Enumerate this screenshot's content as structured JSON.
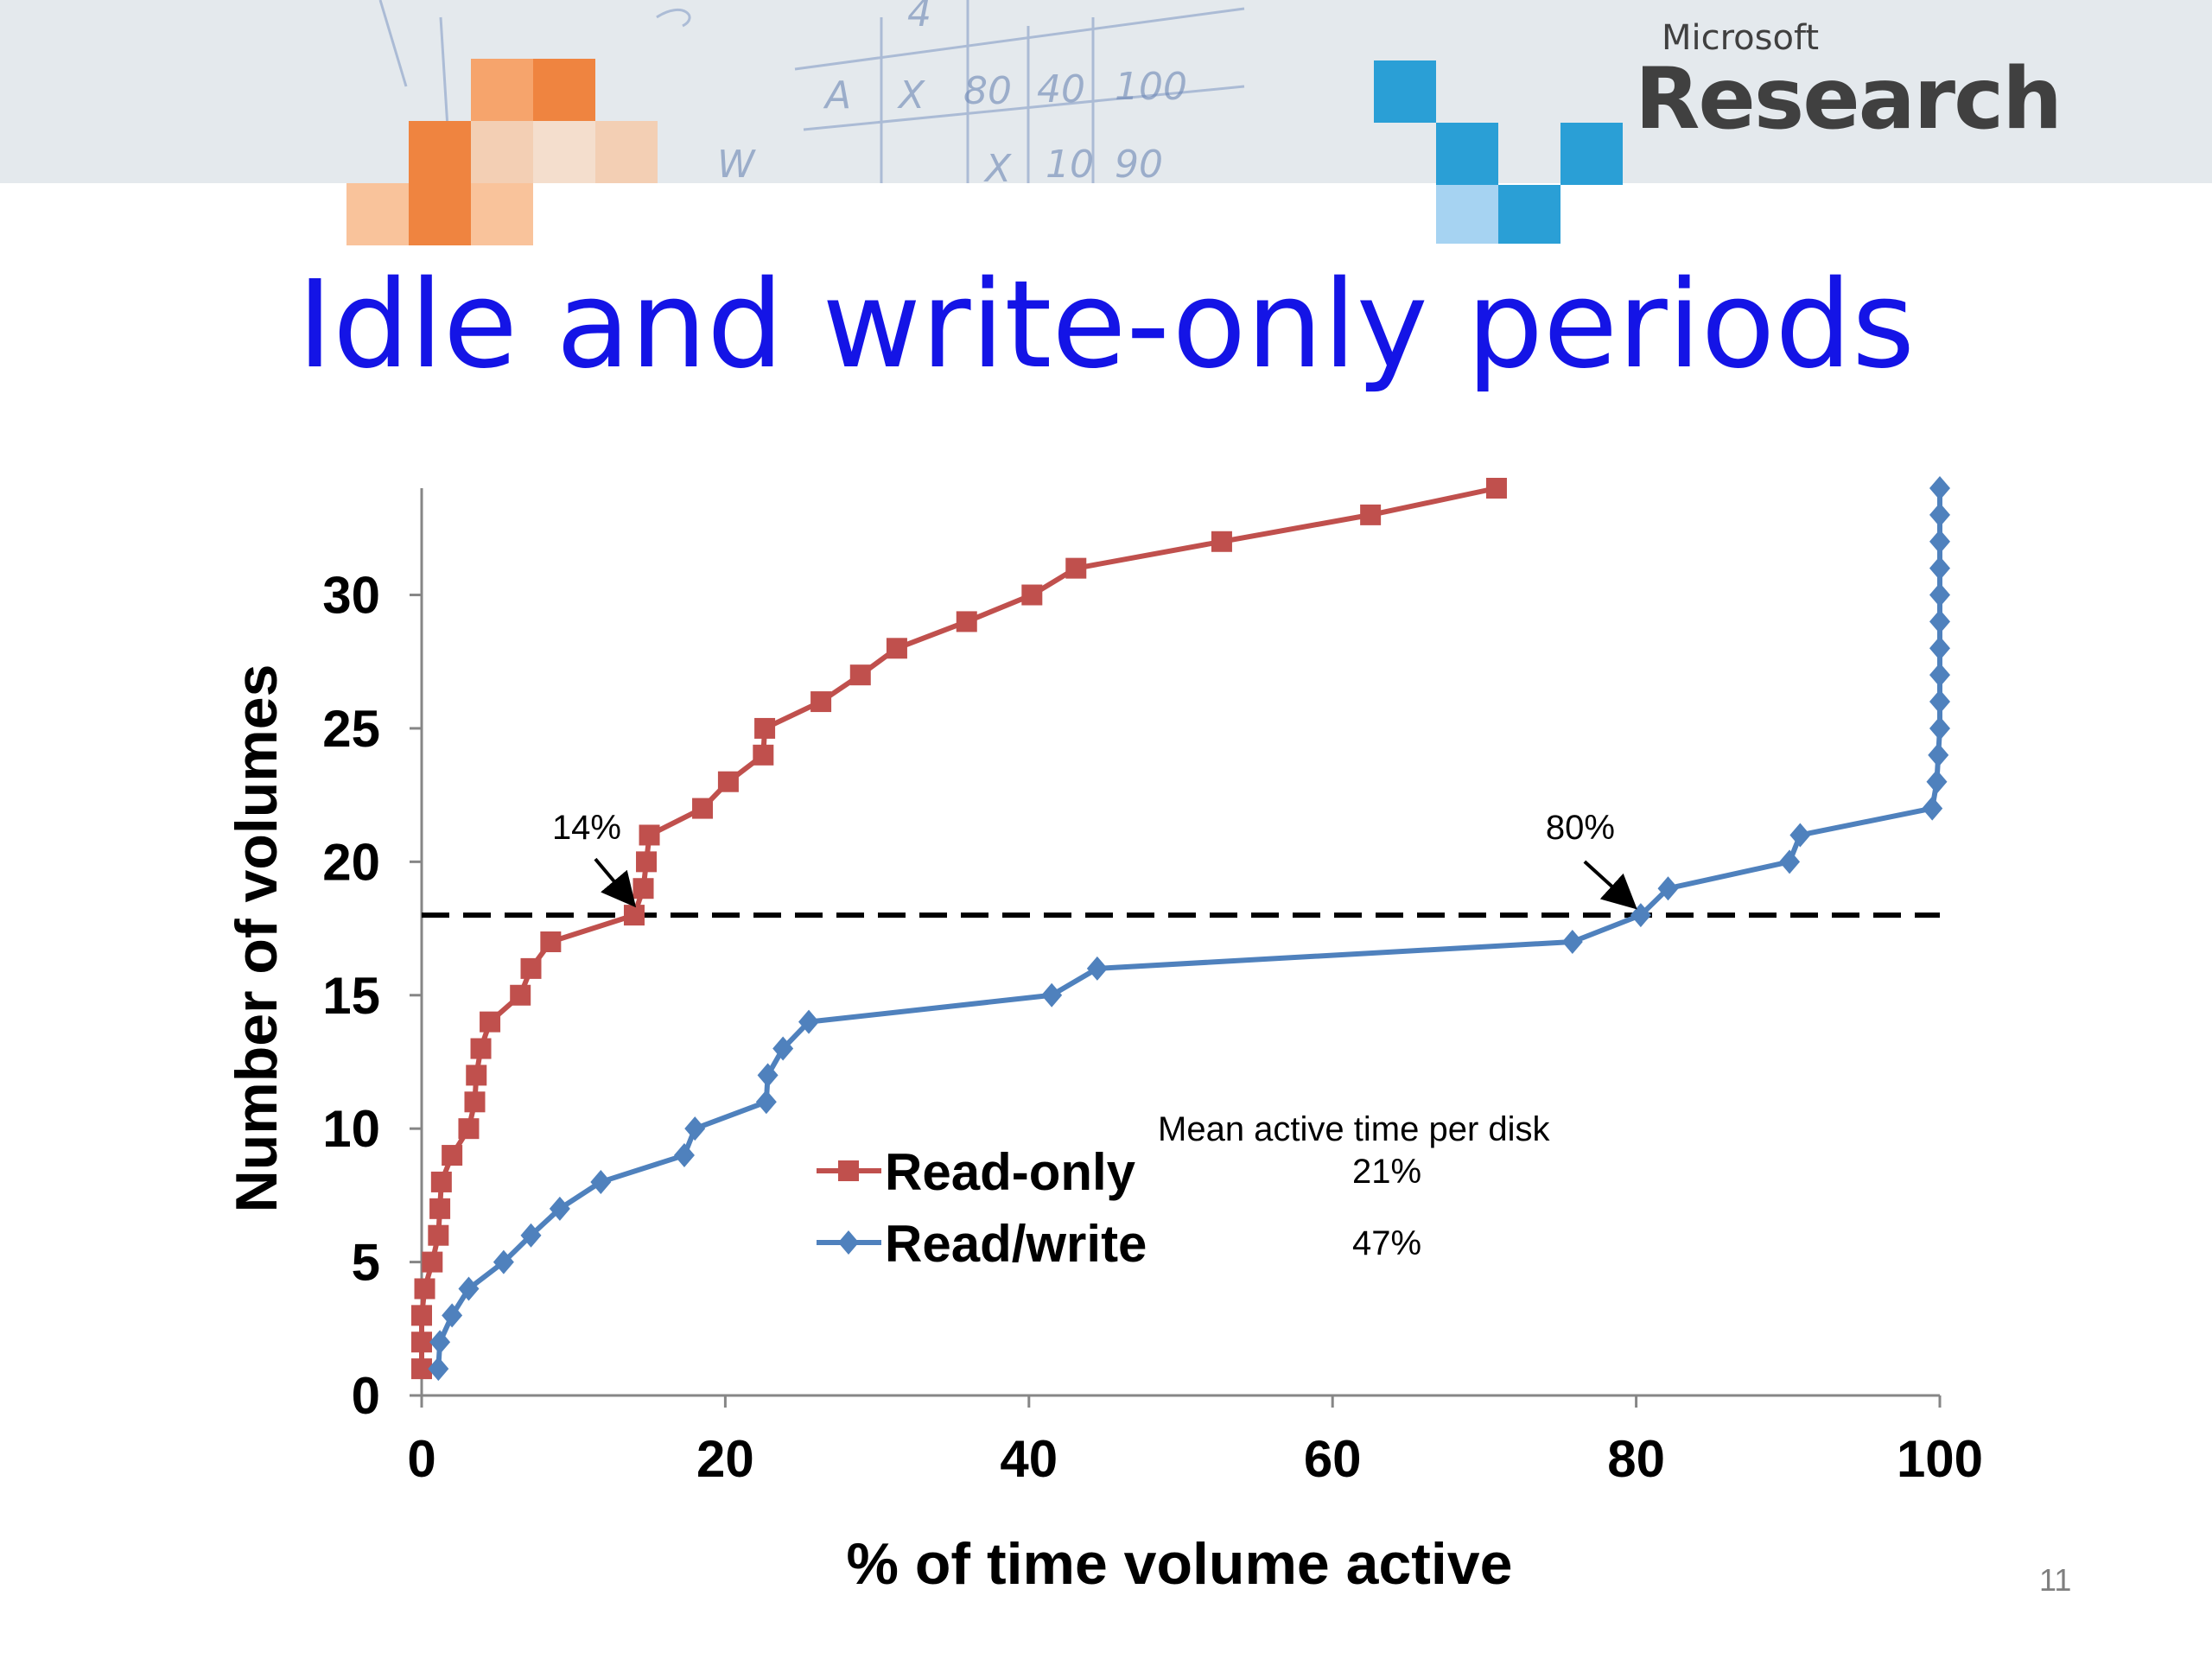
{
  "brand": {
    "small": "Microsoft",
    "big": "Research"
  },
  "slide": {
    "title": "Idle and write-only periods",
    "number": "11"
  },
  "colors": {
    "title": "#1414e6",
    "read_only": "#c0504d",
    "read_write": "#4f81bd",
    "brand_orange": "#ef8440",
    "brand_blue": "#2a9fd6"
  },
  "chart_data": {
    "type": "line",
    "xlabel": "% of time volume active",
    "ylabel": "Number of volumes",
    "xlim": [
      0,
      100
    ],
    "ylim": [
      0,
      34
    ],
    "xticks": [
      "0",
      "20",
      "40",
      "60",
      "80",
      "100"
    ],
    "yticks": [
      "0",
      "5",
      "10",
      "15",
      "20",
      "25",
      "30"
    ],
    "legend_position": "lower-center",
    "series": [
      {
        "name": "Read-only",
        "color": "#c0504d",
        "marker": "square",
        "points": [
          [
            0,
            1
          ],
          [
            0,
            2
          ],
          [
            0,
            3
          ],
          [
            0.2,
            4
          ],
          [
            0.7,
            5
          ],
          [
            1.1,
            6
          ],
          [
            1.2,
            7
          ],
          [
            1.3,
            8
          ],
          [
            2,
            9
          ],
          [
            3.1,
            10
          ],
          [
            3.5,
            11
          ],
          [
            3.6,
            12
          ],
          [
            3.9,
            13
          ],
          [
            4.5,
            14
          ],
          [
            6.5,
            15
          ],
          [
            7.2,
            16
          ],
          [
            8.5,
            17
          ],
          [
            14,
            18
          ],
          [
            14.6,
            19
          ],
          [
            14.8,
            20
          ],
          [
            15,
            21
          ],
          [
            18.5,
            22
          ],
          [
            20.2,
            23
          ],
          [
            22.5,
            24
          ],
          [
            22.6,
            25
          ],
          [
            26.3,
            26
          ],
          [
            28.9,
            27
          ],
          [
            31.3,
            28
          ],
          [
            35.9,
            29
          ],
          [
            40.2,
            30
          ],
          [
            43.1,
            31
          ],
          [
            52.7,
            32
          ],
          [
            62.5,
            33
          ],
          [
            70.8,
            34
          ]
        ]
      },
      {
        "name": "Read/write",
        "color": "#4f81bd",
        "marker": "diamond",
        "points": [
          [
            1.1,
            1
          ],
          [
            1.2,
            2
          ],
          [
            2,
            3
          ],
          [
            3.1,
            4
          ],
          [
            5.4,
            5
          ],
          [
            7.2,
            6
          ],
          [
            9.1,
            7
          ],
          [
            11.8,
            8
          ],
          [
            17.3,
            9
          ],
          [
            18,
            10
          ],
          [
            22.7,
            11
          ],
          [
            22.8,
            12
          ],
          [
            23.8,
            13
          ],
          [
            25.5,
            14
          ],
          [
            41.5,
            15
          ],
          [
            44.5,
            16
          ],
          [
            75.8,
            17
          ],
          [
            80.3,
            18
          ],
          [
            82.1,
            19
          ],
          [
            90.1,
            20
          ],
          [
            90.8,
            21
          ],
          [
            99.5,
            22
          ],
          [
            99.8,
            23
          ],
          [
            99.9,
            24
          ],
          [
            100,
            25
          ],
          [
            100,
            26
          ],
          [
            100,
            27
          ],
          [
            100,
            28
          ],
          [
            100,
            29
          ],
          [
            100,
            30
          ],
          [
            100,
            31
          ],
          [
            100,
            32
          ],
          [
            100,
            33
          ],
          [
            100,
            34
          ]
        ]
      }
    ],
    "reference_line": {
      "y": 18,
      "style": "dashed"
    },
    "annotations": [
      {
        "text": "14%",
        "x": 14,
        "y": 18
      },
      {
        "text": "80%",
        "x": 80.3,
        "y": 18
      }
    ],
    "legend_note": {
      "header": "Mean active time per disk",
      "values": {
        "Read-only": "21%",
        "Read/write": "47%"
      }
    }
  }
}
